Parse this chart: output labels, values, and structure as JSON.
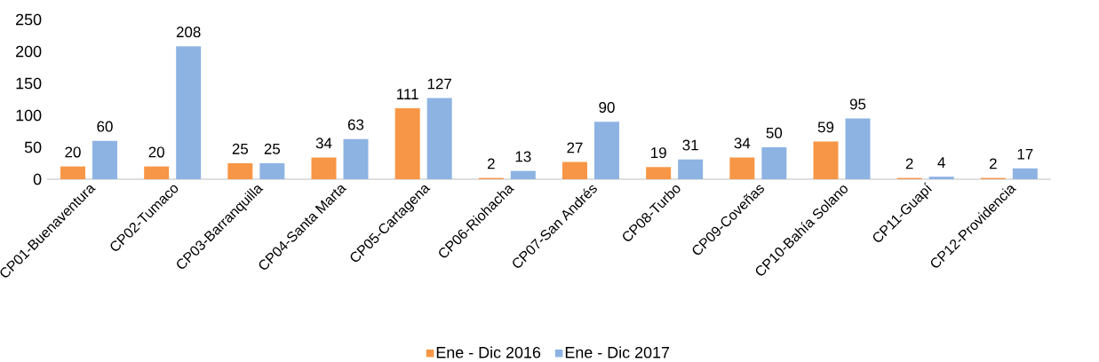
{
  "chart_data": {
    "type": "bar",
    "categories": [
      "CP01-Buenaventura",
      "CP02-Tumaco",
      "CP03-Barranquilla",
      "CP04-Santa Marta",
      "CP05-Cartagena",
      "CP06-Riohacha",
      "CP07-San Andrés",
      "CP08-Turbo",
      "CP09-Coveñas",
      "CP10-Bahía Solano",
      "CP11-Guapí",
      "CP12-Providencia"
    ],
    "series": [
      {
        "name": "Ene - Dic 2016",
        "color": "#f79646",
        "values": [
          20,
          20,
          25,
          34,
          111,
          2,
          27,
          19,
          34,
          59,
          2,
          2
        ]
      },
      {
        "name": "Ene - Dic 2017",
        "color": "#8db3e2",
        "values": [
          60,
          208,
          25,
          63,
          127,
          13,
          90,
          31,
          50,
          95,
          4,
          17
        ]
      }
    ],
    "ylim": [
      0,
      250
    ],
    "yticks": [
      0,
      50,
      100,
      150,
      200,
      250
    ],
    "data_labels": true,
    "legend": "bottom",
    "grid": false
  }
}
